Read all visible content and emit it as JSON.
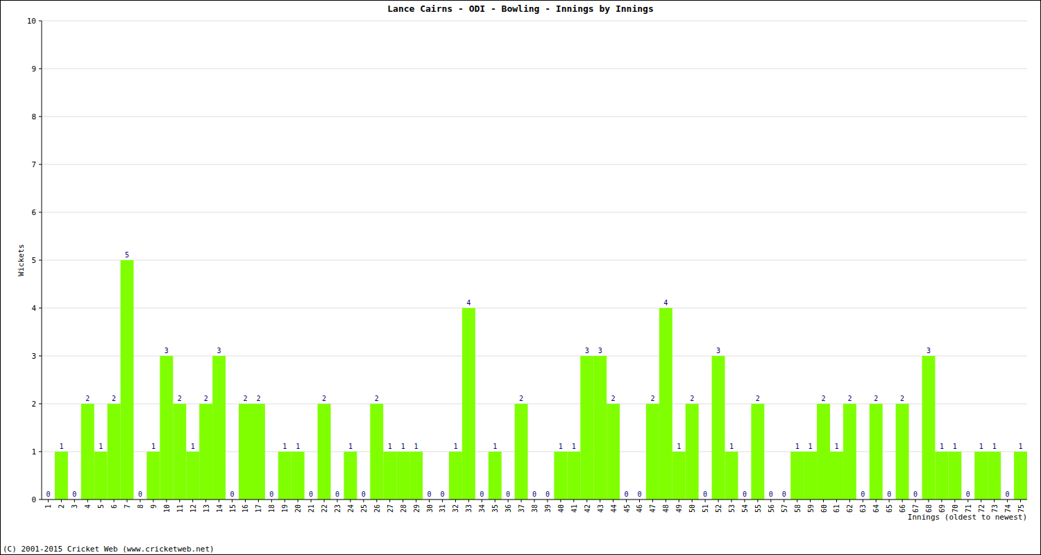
{
  "chart_data": {
    "type": "bar",
    "title": "Lance Cairns - ODI - Bowling - Innings by Innings",
    "x_label": "Innings (oldest to newest)",
    "y_label": "Wickets",
    "annotations": [
      "(C) 2001-2015 Cricket Web (www.cricketweb.net)"
    ],
    "categories": [
      "1",
      "2",
      "3",
      "4",
      "5",
      "6",
      "7",
      "8",
      "9",
      "10",
      "11",
      "12",
      "13",
      "14",
      "15",
      "16",
      "17",
      "18",
      "19",
      "20",
      "21",
      "22",
      "23",
      "24",
      "25",
      "26",
      "27",
      "28",
      "29",
      "30",
      "31",
      "32",
      "33",
      "34",
      "35",
      "36",
      "37",
      "38",
      "39",
      "40",
      "41",
      "42",
      "43",
      "44",
      "45",
      "46",
      "47",
      "48",
      "49",
      "50",
      "51",
      "52",
      "53",
      "54",
      "55",
      "56",
      "57",
      "58",
      "59",
      "60",
      "61",
      "62",
      "63",
      "64",
      "65",
      "66",
      "67",
      "68",
      "69",
      "70",
      "71",
      "72",
      "73",
      "74",
      "75"
    ],
    "values": [
      0,
      1,
      0,
      2,
      1,
      2,
      5,
      0,
      1,
      3,
      2,
      1,
      2,
      3,
      0,
      2,
      2,
      0,
      1,
      1,
      0,
      2,
      0,
      1,
      0,
      2,
      1,
      1,
      1,
      0,
      0,
      1,
      4,
      0,
      1,
      0,
      2,
      0,
      0,
      1,
      1,
      3,
      3,
      2,
      0,
      0,
      2,
      4,
      1,
      2,
      0,
      3,
      1,
      0,
      2,
      0,
      0,
      1,
      1,
      2,
      1,
      2,
      0,
      2,
      0,
      2,
      0,
      3,
      1,
      1,
      0,
      1,
      1,
      0,
      1
    ],
    "color": "#80ff00",
    "ylim": [
      0,
      10
    ],
    "yticks": [
      0,
      1,
      2,
      3,
      4,
      5,
      6,
      7,
      8,
      9,
      10
    ],
    "grid": true,
    "data_labels": true
  }
}
